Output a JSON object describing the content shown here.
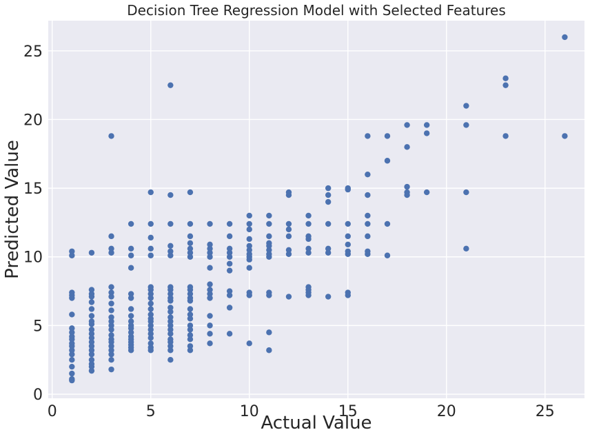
{
  "chart_data": {
    "type": "scatter",
    "title": "Decision Tree Regression Model with Selected Features",
    "xlabel": "Actual Value",
    "ylabel": "Predicted Value",
    "xlim": [
      -0.2,
      27.0
    ],
    "ylim": [
      -0.3,
      27.2
    ],
    "xticks": [
      "0",
      "5",
      "10",
      "15",
      "20",
      "25"
    ],
    "yticks": [
      "0",
      "5",
      "10",
      "15",
      "20",
      "25"
    ],
    "grid": true,
    "style": "seaborn-darkgrid",
    "colors": {
      "point": "#4c72b0",
      "background": "#eaeaf2",
      "grid": "#ffffff"
    },
    "series": [
      {
        "points": [
          [
            1,
            1.0
          ],
          [
            1,
            1.1
          ],
          [
            1,
            1.5
          ],
          [
            1,
            2.0
          ],
          [
            1,
            2.5
          ],
          [
            1,
            2.9
          ],
          [
            1,
            3.2
          ],
          [
            1,
            3.5
          ],
          [
            1,
            3.7
          ],
          [
            1,
            4.0
          ],
          [
            1,
            4.2
          ],
          [
            1,
            4.5
          ],
          [
            1,
            4.8
          ],
          [
            1,
            5.8
          ],
          [
            1,
            7.0
          ],
          [
            1,
            7.2
          ],
          [
            1,
            7.4
          ],
          [
            1,
            10.1
          ],
          [
            1,
            10.4
          ],
          [
            2,
            1.7
          ],
          [
            2,
            2.0
          ],
          [
            2,
            2.2
          ],
          [
            2,
            2.5
          ],
          [
            2,
            2.9
          ],
          [
            2,
            3.2
          ],
          [
            2,
            3.5
          ],
          [
            2,
            3.8
          ],
          [
            2,
            4.1
          ],
          [
            2,
            4.4
          ],
          [
            2,
            4.7
          ],
          [
            2,
            5.1
          ],
          [
            2,
            5.3
          ],
          [
            2,
            5.7
          ],
          [
            2,
            6.2
          ],
          [
            2,
            6.7
          ],
          [
            2,
            7.1
          ],
          [
            2,
            7.3
          ],
          [
            2,
            7.6
          ],
          [
            2,
            10.3
          ],
          [
            3,
            1.8
          ],
          [
            3,
            2.5
          ],
          [
            3,
            2.9
          ],
          [
            3,
            3.2
          ],
          [
            3,
            3.5
          ],
          [
            3,
            3.8
          ],
          [
            3,
            4.0
          ],
          [
            3,
            4.3
          ],
          [
            3,
            4.7
          ],
          [
            3,
            5.0
          ],
          [
            3,
            5.3
          ],
          [
            3,
            5.6
          ],
          [
            3,
            6.1
          ],
          [
            3,
            6.6
          ],
          [
            3,
            7.1
          ],
          [
            3,
            7.4
          ],
          [
            3,
            7.8
          ],
          [
            3,
            10.3
          ],
          [
            3,
            10.6
          ],
          [
            3,
            11.5
          ],
          [
            3,
            18.8
          ],
          [
            4,
            3.2
          ],
          [
            4,
            3.4
          ],
          [
            4,
            3.6
          ],
          [
            4,
            3.8
          ],
          [
            4,
            4.0
          ],
          [
            4,
            4.2
          ],
          [
            4,
            4.5
          ],
          [
            4,
            4.8
          ],
          [
            4,
            5.0
          ],
          [
            4,
            5.3
          ],
          [
            4,
            5.7
          ],
          [
            4,
            6.2
          ],
          [
            4,
            7.0
          ],
          [
            4,
            7.3
          ],
          [
            4,
            9.2
          ],
          [
            4,
            10.1
          ],
          [
            4,
            10.6
          ],
          [
            4,
            12.4
          ],
          [
            5,
            3.2
          ],
          [
            5,
            3.4
          ],
          [
            5,
            3.7
          ],
          [
            5,
            4.1
          ],
          [
            5,
            4.4
          ],
          [
            5,
            4.7
          ],
          [
            5,
            5.0
          ],
          [
            5,
            5.3
          ],
          [
            5,
            5.5
          ],
          [
            5,
            5.8
          ],
          [
            5,
            6.2
          ],
          [
            5,
            6.6
          ],
          [
            5,
            7.0
          ],
          [
            5,
            7.3
          ],
          [
            5,
            7.6
          ],
          [
            5,
            7.8
          ],
          [
            5,
            10.1
          ],
          [
            5,
            10.6
          ],
          [
            5,
            11.4
          ],
          [
            5,
            12.4
          ],
          [
            5,
            14.7
          ],
          [
            6,
            2.5
          ],
          [
            6,
            3.2
          ],
          [
            6,
            3.5
          ],
          [
            6,
            3.8
          ],
          [
            6,
            4.0
          ],
          [
            6,
            4.4
          ],
          [
            6,
            4.7
          ],
          [
            6,
            5.0
          ],
          [
            6,
            5.3
          ],
          [
            6,
            5.6
          ],
          [
            6,
            6.0
          ],
          [
            6,
            6.3
          ],
          [
            6,
            6.8
          ],
          [
            6,
            7.0
          ],
          [
            6,
            7.3
          ],
          [
            6,
            7.6
          ],
          [
            6,
            7.8
          ],
          [
            6,
            10.1
          ],
          [
            6,
            10.4
          ],
          [
            6,
            10.8
          ],
          [
            6,
            12.4
          ],
          [
            6,
            14.5
          ],
          [
            6,
            22.5
          ],
          [
            7,
            3.2
          ],
          [
            7,
            3.5
          ],
          [
            7,
            4.0
          ],
          [
            7,
            4.3
          ],
          [
            7,
            4.7
          ],
          [
            7,
            5.0
          ],
          [
            7,
            5.5
          ],
          [
            7,
            5.8
          ],
          [
            7,
            6.2
          ],
          [
            7,
            6.8
          ],
          [
            7,
            7.0
          ],
          [
            7,
            7.3
          ],
          [
            7,
            7.6
          ],
          [
            7,
            7.8
          ],
          [
            7,
            10.0
          ],
          [
            7,
            10.3
          ],
          [
            7,
            10.6
          ],
          [
            7,
            11.0
          ],
          [
            7,
            11.5
          ],
          [
            7,
            12.4
          ],
          [
            7,
            14.7
          ],
          [
            8,
            3.7
          ],
          [
            8,
            4.4
          ],
          [
            8,
            5.0
          ],
          [
            8,
            5.7
          ],
          [
            8,
            7.0
          ],
          [
            8,
            7.3
          ],
          [
            8,
            7.6
          ],
          [
            8,
            8.0
          ],
          [
            8,
            9.2
          ],
          [
            8,
            10.0
          ],
          [
            8,
            10.3
          ],
          [
            8,
            10.6
          ],
          [
            8,
            10.9
          ],
          [
            8,
            12.4
          ],
          [
            9,
            4.4
          ],
          [
            9,
            6.3
          ],
          [
            9,
            7.2
          ],
          [
            9,
            7.5
          ],
          [
            9,
            9.0
          ],
          [
            9,
            9.5
          ],
          [
            9,
            10.0
          ],
          [
            9,
            10.3
          ],
          [
            9,
            10.6
          ],
          [
            9,
            11.5
          ],
          [
            9,
            12.4
          ],
          [
            10,
            3.7
          ],
          [
            10,
            7.2
          ],
          [
            10,
            7.4
          ],
          [
            10,
            9.2
          ],
          [
            10,
            9.8
          ],
          [
            10,
            10.0
          ],
          [
            10,
            10.2
          ],
          [
            10,
            10.5
          ],
          [
            10,
            10.8
          ],
          [
            10,
            11.3
          ],
          [
            10,
            12.0
          ],
          [
            10,
            12.4
          ],
          [
            10,
            13.0
          ],
          [
            11,
            3.2
          ],
          [
            11,
            4.5
          ],
          [
            11,
            7.2
          ],
          [
            11,
            7.4
          ],
          [
            11,
            10.0
          ],
          [
            11,
            10.2
          ],
          [
            11,
            10.5
          ],
          [
            11,
            10.8
          ],
          [
            11,
            11.0
          ],
          [
            11,
            11.5
          ],
          [
            11,
            12.4
          ],
          [
            11,
            13.0
          ],
          [
            12,
            7.1
          ],
          [
            12,
            10.2
          ],
          [
            12,
            10.5
          ],
          [
            12,
            11.5
          ],
          [
            12,
            12.0
          ],
          [
            12,
            12.4
          ],
          [
            12,
            14.5
          ],
          [
            12,
            14.7
          ],
          [
            13,
            7.2
          ],
          [
            13,
            7.4
          ],
          [
            13,
            7.6
          ],
          [
            13,
            7.8
          ],
          [
            13,
            10.3
          ],
          [
            13,
            10.6
          ],
          [
            13,
            11.3
          ],
          [
            13,
            11.5
          ],
          [
            13,
            12.4
          ],
          [
            13,
            13.0
          ],
          [
            14,
            7.1
          ],
          [
            14,
            10.3
          ],
          [
            14,
            10.6
          ],
          [
            14,
            12.4
          ],
          [
            14,
            14.0
          ],
          [
            14,
            14.5
          ],
          [
            14,
            15.0
          ],
          [
            15,
            7.2
          ],
          [
            15,
            7.4
          ],
          [
            15,
            10.2
          ],
          [
            15,
            10.4
          ],
          [
            15,
            10.9
          ],
          [
            15,
            11.5
          ],
          [
            15,
            12.4
          ],
          [
            15,
            14.9
          ],
          [
            15,
            15.0
          ],
          [
            16,
            10.2
          ],
          [
            16,
            10.4
          ],
          [
            16,
            11.5
          ],
          [
            16,
            12.4
          ],
          [
            16,
            13.0
          ],
          [
            16,
            14.5
          ],
          [
            16,
            16.0
          ],
          [
            16,
            18.8
          ],
          [
            17,
            10.1
          ],
          [
            17,
            12.4
          ],
          [
            17,
            17.0
          ],
          [
            17,
            18.8
          ],
          [
            18,
            14.5
          ],
          [
            18,
            14.7
          ],
          [
            18,
            15.1
          ],
          [
            18,
            18.0
          ],
          [
            18,
            19.6
          ],
          [
            19,
            14.7
          ],
          [
            19,
            19.0
          ],
          [
            19,
            19.6
          ],
          [
            21,
            10.6
          ],
          [
            21,
            14.7
          ],
          [
            21,
            19.6
          ],
          [
            21,
            21.0
          ],
          [
            23,
            18.8
          ],
          [
            23,
            22.5
          ],
          [
            23,
            23.0
          ],
          [
            26,
            18.8
          ],
          [
            26,
            26.0
          ]
        ]
      }
    ]
  }
}
